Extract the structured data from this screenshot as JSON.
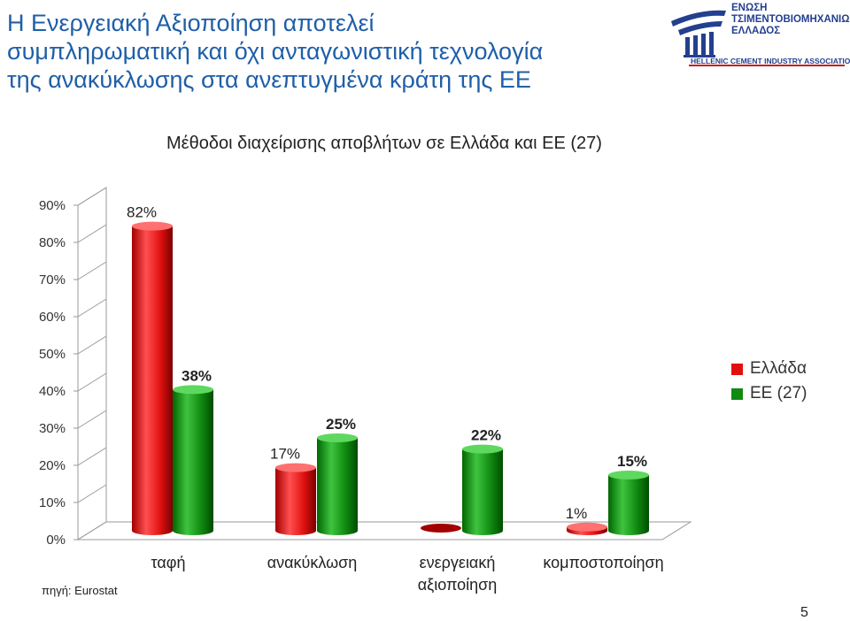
{
  "slide": {
    "title_lines": [
      "Η Ενεργειακή Αξιοποίηση αποτελεί",
      "συμπληρωματική και όχι ανταγωνιστική τεχνολογία",
      "της ανακύκλωσης στα ανεπτυγμένα κράτη της ΕΕ"
    ],
    "source": "πηγή: Eurostat",
    "page_number": "5"
  },
  "logo": {
    "lines": [
      "ΕΝΩΣΗ",
      "ΤΣΙΜΕΝΤΟΒΙΟΜΗΧΑΝΙΩΝ",
      "ΕΛΛΑΔΟΣ"
    ],
    "english": "HELLENIC CEMENT INDUSTRY ASSOCIATION",
    "color": "#233f8f",
    "accent": "#c81e1e"
  },
  "chart_data": {
    "type": "bar",
    "title": "Μέθοδοι διαχείρισης αποβλήτων σε Ελλάδα και ΕΕ (27)",
    "categories": [
      "ταφή",
      "ανακύκλωση",
      "ενεργειακή αξιοποίηση",
      "κομποστοποίηση"
    ],
    "category_lines": [
      [
        "ταφή"
      ],
      [
        "ανακύκλωση"
      ],
      [
        "ενεργειακή",
        "αξιοποίηση"
      ],
      [
        "κομποστοποίηση"
      ]
    ],
    "series": [
      {
        "name": "Ελλάδα",
        "values": [
          82,
          17,
          0,
          1
        ],
        "labels": [
          "82%",
          "17%",
          "",
          "1%"
        ],
        "color": "#e01010"
      },
      {
        "name": "ΕΕ (27)",
        "values": [
          38,
          25,
          22,
          15
        ],
        "labels": [
          "38%",
          "25%",
          "22%",
          "15%"
        ],
        "color": "#108a10"
      }
    ],
    "yticks": [
      0,
      10,
      20,
      30,
      40,
      50,
      60,
      70,
      80,
      90
    ],
    "ytick_labels": [
      "0%",
      "10%",
      "20%",
      "30%",
      "40%",
      "50%",
      "60%",
      "70%",
      "80%",
      "90%"
    ],
    "ylim": [
      0,
      90
    ],
    "legend_position": "right",
    "grid": false,
    "style": "3d-cylinder"
  }
}
